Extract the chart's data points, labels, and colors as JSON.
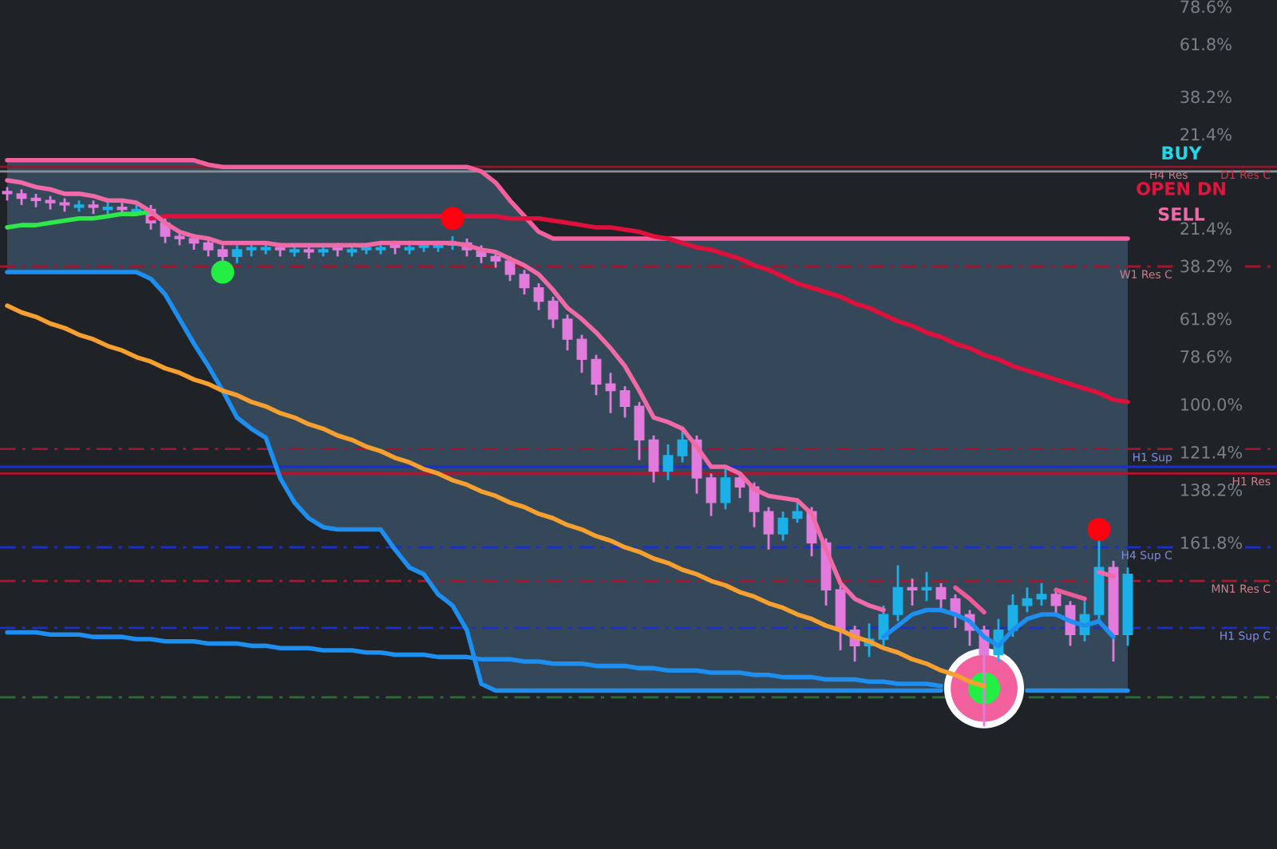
{
  "chart_data": {
    "type": "candlestick",
    "categories": [
      null,
      null,
      null,
      null,
      null,
      null,
      null,
      null,
      null,
      null,
      null,
      null,
      null,
      null,
      null,
      null,
      null,
      null,
      null,
      null,
      null,
      null,
      null,
      null,
      null,
      null,
      null,
      null,
      null,
      null,
      null,
      null,
      null,
      null,
      null,
      null,
      null,
      null,
      null,
      null,
      null,
      null,
      null,
      null,
      null,
      null,
      null,
      null,
      null,
      null,
      null,
      null,
      null,
      null,
      null,
      null,
      null,
      null,
      null,
      null,
      null,
      null,
      null,
      null,
      null,
      null,
      null,
      null,
      null,
      null,
      null,
      null,
      null,
      null,
      null,
      null,
      null,
      null,
      null
    ],
    "ohlc": [
      [
        5,
        9,
        3,
        6
      ],
      [
        6,
        11,
        4,
        8
      ],
      [
        8,
        12,
        6,
        9
      ],
      [
        9,
        13,
        7,
        10
      ],
      [
        10,
        14,
        8,
        11
      ],
      [
        12,
        14,
        9,
        11
      ],
      [
        11,
        15,
        9,
        12
      ],
      [
        13,
        15,
        10,
        12
      ],
      [
        12,
        16,
        10,
        13
      ],
      [
        14,
        16,
        11,
        13
      ],
      [
        13,
        22,
        11,
        19
      ],
      [
        19,
        28,
        17,
        25
      ],
      [
        25,
        29,
        23,
        26
      ],
      [
        26,
        31,
        24,
        28
      ],
      [
        28,
        34,
        26,
        31
      ],
      [
        31,
        37,
        29,
        34
      ],
      [
        34,
        37,
        29,
        31
      ],
      [
        31,
        34,
        28,
        30
      ],
      [
        31,
        33,
        28,
        30
      ],
      [
        30,
        34,
        28,
        31
      ],
      [
        32,
        34,
        29,
        31
      ],
      [
        31,
        35,
        29,
        32
      ],
      [
        32,
        34,
        29,
        31
      ],
      [
        30,
        34,
        28,
        31
      ],
      [
        32,
        34,
        29,
        31
      ],
      [
        31,
        33,
        28,
        30
      ],
      [
        31,
        33,
        28,
        30
      ],
      [
        29,
        33,
        27,
        30
      ],
      [
        31,
        33,
        27,
        30
      ],
      [
        30,
        32,
        27,
        29
      ],
      [
        30,
        32,
        27,
        29
      ],
      [
        29,
        31,
        25,
        28
      ],
      [
        28,
        34,
        26,
        31
      ],
      [
        31,
        37,
        29,
        34
      ],
      [
        34,
        39,
        32,
        36
      ],
      [
        36,
        45,
        34,
        42
      ],
      [
        42,
        51,
        40,
        48
      ],
      [
        48,
        58,
        46,
        54
      ],
      [
        54,
        66,
        52,
        62
      ],
      [
        62,
        76,
        60,
        71
      ],
      [
        71,
        86,
        69,
        80
      ],
      [
        80,
        96,
        78,
        91
      ],
      [
        91,
        104,
        86,
        94
      ],
      [
        94,
        106,
        92,
        101
      ],
      [
        101,
        125,
        99,
        116
      ],
      [
        116,
        135,
        114,
        130
      ],
      [
        130,
        134,
        118,
        123
      ],
      [
        123,
        126,
        112,
        116
      ],
      [
        116,
        140,
        114,
        133
      ],
      [
        133,
        150,
        131,
        144
      ],
      [
        144,
        147,
        128,
        133
      ],
      [
        133,
        142,
        131,
        137
      ],
      [
        137,
        155,
        135,
        148
      ],
      [
        148,
        165,
        146,
        158
      ],
      [
        158,
        161,
        148,
        151
      ],
      [
        151,
        153,
        144,
        148
      ],
      [
        148,
        168,
        146,
        162
      ],
      [
        162,
        190,
        160,
        183
      ],
      [
        183,
        210,
        181,
        201
      ],
      [
        201,
        215,
        199,
        208
      ],
      [
        208,
        213,
        198,
        205
      ],
      [
        205,
        208,
        190,
        194
      ],
      [
        194,
        197,
        172,
        182
      ],
      [
        182,
        190,
        178,
        183
      ],
      [
        183,
        188,
        175,
        182
      ],
      [
        182,
        192,
        180,
        187
      ],
      [
        187,
        200,
        185,
        194
      ],
      [
        194,
        208,
        192,
        201
      ],
      [
        201,
        244,
        199,
        212
      ],
      [
        212,
        215,
        196,
        201
      ],
      [
        201,
        204,
        185,
        190
      ],
      [
        190,
        193,
        182,
        187
      ],
      [
        187,
        190,
        180,
        185
      ],
      [
        185,
        195,
        183,
        190
      ],
      [
        190,
        208,
        188,
        203
      ],
      [
        203,
        206,
        188,
        194
      ],
      [
        194,
        197,
        160,
        173
      ],
      [
        173,
        215,
        170,
        203
      ],
      [
        203,
        208,
        173,
        176
      ]
    ],
    "colors": [
      "#e27bdc",
      "#e27bdc",
      "#e27bdc",
      "#e27bdc",
      "#e27bdc",
      "#1cb0e8",
      "#e27bdc",
      "#1cb0e8",
      "#e27bdc",
      "#1cb0e8",
      "#e27bdc",
      "#e27bdc",
      "#e27bdc",
      "#e27bdc",
      "#e27bdc",
      "#e27bdc",
      "#1cb0e8",
      "#1cb0e8",
      "#1cb0e8",
      "#e27bdc",
      "#1cb0e8",
      "#e27bdc",
      "#1cb0e8",
      "#e27bdc",
      "#1cb0e8",
      "#1cb0e8",
      "#1cb0e8",
      "#e27bdc",
      "#1cb0e8",
      "#1cb0e8",
      "#1cb0e8",
      "#1cb0e8",
      "#e27bdc",
      "#e27bdc",
      "#e27bdc",
      "#e27bdc",
      "#e27bdc",
      "#e27bdc",
      "#e27bdc",
      "#e27bdc",
      "#e27bdc",
      "#e27bdc",
      "#e27bdc",
      "#e27bdc",
      "#e27bdc",
      "#e27bdc",
      "#1cb0e8",
      "#1cb0e8",
      "#e27bdc",
      "#e27bdc",
      "#1cb0e8",
      "#e27bdc",
      "#e27bdc",
      "#e27bdc",
      "#1cb0e8",
      "#1cb0e8",
      "#e27bdc",
      "#e27bdc",
      "#e27bdc",
      "#e27bdc",
      "#1cb0e8",
      "#1cb0e8",
      "#1cb0e8",
      "#e27bdc",
      "#1cb0e8",
      "#e27bdc",
      "#e27bdc",
      "#e27bdc",
      "#e27bdc",
      "#1cb0e8",
      "#1cb0e8",
      "#1cb0e8",
      "#1cb0e8",
      "#e27bdc",
      "#e27bdc",
      "#1cb0e8",
      "#1cb0e8",
      "#e27bdc",
      "#1cb0e8"
    ],
    "series": [
      {
        "type": "line",
        "color": "#f2609e",
        "values": [
          -9,
          -9,
          -9,
          -9,
          -9,
          -9,
          -9,
          -9,
          -9,
          -9,
          -9,
          -9,
          -9,
          -9,
          -7,
          -6,
          -6,
          -6,
          -6,
          -6,
          -6,
          -6,
          -6,
          -6,
          -6,
          -6,
          -6,
          -6,
          -6,
          -6,
          -6,
          -6,
          -6,
          -4,
          1,
          9,
          16,
          23,
          26,
          26,
          26,
          26,
          26,
          26,
          26,
          26,
          26,
          26,
          26,
          26,
          26,
          26,
          26,
          26,
          26,
          26,
          26,
          26,
          26,
          26,
          26,
          26,
          26,
          26,
          26,
          26,
          26,
          26,
          26,
          26,
          26,
          26,
          26,
          26,
          26,
          26,
          26,
          26,
          26
        ]
      },
      {
        "type": "line",
        "color": "#1c8ff0",
        "values": [
          41,
          41,
          41,
          41,
          41,
          41,
          41,
          41,
          41,
          41,
          44,
          51,
          62,
          73,
          83,
          94,
          106,
          111,
          115,
          133,
          144,
          151,
          155,
          156,
          156,
          156,
          156,
          165,
          173,
          176,
          185,
          190,
          201,
          225,
          228,
          228,
          228,
          228,
          228,
          228,
          228,
          228,
          228,
          228,
          228,
          228,
          228,
          228,
          228,
          228,
          228,
          228,
          228,
          228,
          228,
          228,
          228,
          228,
          228,
          228,
          228,
          228,
          228,
          228,
          228,
          228,
          null,
          null,
          null,
          null,
          null,
          228,
          228,
          228,
          228,
          228,
          228,
          228,
          228
        ]
      },
      {
        "type": "line",
        "color": "#1c8ff0",
        "values": [
          202,
          202,
          202,
          203,
          203,
          203,
          204,
          204,
          204,
          205,
          205,
          206,
          206,
          206,
          207,
          207,
          207,
          208,
          208,
          209,
          209,
          209,
          210,
          210,
          210,
          211,
          211,
          212,
          212,
          212,
          213,
          213,
          213,
          214,
          214,
          214,
          215,
          215,
          216,
          216,
          216,
          217,
          217,
          217,
          218,
          218,
          219,
          219,
          219,
          220,
          220,
          220,
          221,
          221,
          222,
          222,
          222,
          223,
          223,
          223,
          224,
          224,
          225,
          225,
          225,
          226,
          null,
          null,
          null,
          null,
          null,
          null,
          null,
          null,
          null,
          null,
          null,
          null,
          null
        ]
      },
      {
        "type": "line",
        "color": "#f7a030",
        "values": [
          56,
          59,
          61,
          64,
          66,
          69,
          71,
          74,
          76,
          79,
          81,
          84,
          86,
          89,
          91,
          94,
          96,
          99,
          101,
          104,
          106,
          109,
          111,
          114,
          116,
          119,
          121,
          124,
          126,
          129,
          131,
          134,
          136,
          139,
          141,
          144,
          146,
          149,
          151,
          154,
          156,
          159,
          161,
          164,
          166,
          169,
          171,
          174,
          176,
          179,
          181,
          184,
          186,
          189,
          191,
          194,
          196,
          199,
          201,
          204,
          206,
          209,
          211,
          214,
          216,
          219,
          221,
          224,
          226,
          null,
          null,
          null,
          null,
          null,
          null,
          null,
          null,
          null,
          null
        ]
      },
      {
        "type": "line",
        "color": "#2ee84a",
        "values": [
          21,
          20,
          20,
          19,
          18,
          17,
          17,
          16,
          15,
          15,
          14,
          null,
          null,
          null,
          null,
          null,
          null,
          null,
          null,
          null,
          null,
          null,
          null,
          null,
          null,
          null,
          null,
          null,
          null,
          null,
          null,
          null,
          null,
          null,
          null,
          null,
          null,
          null,
          null,
          null,
          null,
          null,
          null,
          null,
          null,
          null,
          null,
          null,
          null,
          null,
          null,
          null,
          null,
          null,
          null,
          null,
          null,
          null,
          null,
          null,
          null,
          null,
          null,
          null,
          null,
          null,
          null,
          null,
          null,
          null,
          null,
          null,
          null,
          null,
          null,
          null,
          null,
          null,
          null
        ]
      },
      {
        "type": "line",
        "color": "#e0103c",
        "values": [
          null,
          null,
          null,
          null,
          null,
          null,
          null,
          null,
          null,
          null,
          17,
          16,
          16,
          16,
          16,
          16,
          16,
          16,
          16,
          16,
          16,
          16,
          16,
          16,
          16,
          16,
          16,
          16,
          16,
          16,
          16,
          16,
          16,
          16,
          16,
          17,
          17,
          17,
          18,
          19,
          20,
          21,
          21,
          22,
          23,
          25,
          26,
          28,
          30,
          31,
          33,
          35,
          38,
          40,
          43,
          46,
          48,
          50,
          52,
          55,
          57,
          60,
          63,
          65,
          68,
          70,
          73,
          75,
          78,
          80,
          83,
          85,
          87,
          89,
          91,
          93,
          95,
          98,
          99
        ]
      },
      {
        "type": "line",
        "color": "#f06aa8",
        "values": [
          0,
          1,
          3,
          4,
          6,
          6,
          7,
          9,
          9,
          10,
          14,
          19,
          23,
          25,
          26,
          28,
          28,
          28,
          28,
          29,
          29,
          29,
          29,
          29,
          29,
          29,
          28,
          28,
          28,
          28,
          28,
          28,
          29,
          31,
          32,
          35,
          38,
          42,
          49,
          57,
          62,
          68,
          75,
          83,
          94,
          106,
          108,
          111,
          119,
          128,
          128,
          131,
          138,
          141,
          142,
          143,
          149,
          165,
          180,
          187,
          190,
          192,
          null,
          null,
          null,
          null,
          null,
          null,
          null,
          null,
          null,
          null,
          null,
          null,
          null,
          null,
          null,
          null,
          null
        ],
        "upper": [
          -9,
          -9,
          -9,
          -9,
          -9,
          -9,
          -9,
          -9,
          -9,
          -9,
          -9,
          -9,
          -9,
          -9,
          -7,
          -6,
          -6,
          -6,
          -6,
          -6,
          -6,
          -6,
          -6,
          -6,
          -6,
          -6,
          -6,
          -6,
          -6,
          -6,
          -6,
          -6,
          -6,
          -4,
          1,
          9,
          16,
          23,
          26,
          26,
          26,
          26,
          26,
          26,
          26,
          26,
          26,
          26,
          26,
          26,
          26,
          26,
          26,
          26,
          26,
          26,
          26,
          26,
          26,
          26,
          26,
          26,
          26,
          26,
          26,
          26,
          26,
          26,
          26,
          26,
          26,
          26,
          26,
          26,
          26,
          26,
          26,
          26,
          26
        ],
        "lower": [
          41,
          41,
          41,
          41,
          41,
          41,
          41,
          41,
          41,
          41,
          44,
          51,
          62,
          73,
          83,
          94,
          106,
          111,
          115,
          133,
          144,
          151,
          155,
          156,
          156,
          156,
          156,
          165,
          173,
          176,
          185,
          190,
          201,
          225,
          228,
          228,
          228,
          228,
          228,
          228,
          228,
          228,
          228,
          228,
          228,
          228,
          228,
          228,
          228,
          228,
          228,
          228,
          228,
          228,
          228,
          228,
          228,
          228,
          228,
          228,
          228,
          228,
          228,
          228,
          228,
          228,
          228,
          228,
          228,
          228,
          228,
          228,
          228,
          228,
          228,
          228,
          228,
          228,
          228
        ]
      },
      {
        "type": "line",
        "color": "#1c8ff0",
        "values": [
          null,
          null,
          null,
          null,
          null,
          null,
          null,
          null,
          null,
          null,
          null,
          null,
          null,
          null,
          null,
          null,
          null,
          null,
          null,
          null,
          null,
          null,
          null,
          null,
          null,
          null,
          null,
          null,
          null,
          null,
          null,
          null,
          null,
          null,
          null,
          null,
          null,
          null,
          null,
          null,
          null,
          null,
          null,
          null,
          null,
          null,
          null,
          null,
          null,
          null,
          null,
          null,
          null,
          null,
          null,
          null,
          null,
          null,
          null,
          null,
          null,
          204,
          199,
          194,
          192,
          192,
          194,
          197,
          204,
          208,
          201,
          196,
          194,
          194,
          197,
          199,
          197,
          204,
          null
        ]
      },
      {
        "type": "line",
        "color": "#ee5a98",
        "values": [
          null,
          null,
          null,
          null,
          null,
          null,
          null,
          null,
          null,
          null,
          null,
          null,
          null,
          null,
          null,
          null,
          null,
          null,
          null,
          null,
          null,
          null,
          null,
          null,
          null,
          null,
          null,
          null,
          null,
          null,
          null,
          null,
          null,
          null,
          null,
          null,
          null,
          null,
          null,
          null,
          null,
          null,
          null,
          null,
          null,
          null,
          null,
          null,
          null,
          null,
          null,
          null,
          null,
          null,
          null,
          null,
          null,
          null,
          null,
          null,
          null,
          null,
          null,
          null,
          null,
          null,
          182,
          187,
          193,
          null,
          null,
          null,
          null,
          null,
          null,
          null,
          null,
          null,
          null
        ]
      },
      {
        "type": "line",
        "color": "#ea5c96",
        "values": [
          null,
          null,
          null,
          null,
          null,
          null,
          null,
          null,
          null,
          null,
          null,
          null,
          null,
          null,
          null,
          null,
          null,
          null,
          null,
          null,
          null,
          null,
          null,
          null,
          null,
          null,
          null,
          null,
          null,
          null,
          null,
          null,
          null,
          null,
          null,
          null,
          null,
          null,
          null,
          null,
          null,
          null,
          null,
          null,
          null,
          null,
          null,
          null,
          null,
          null,
          null,
          null,
          null,
          null,
          null,
          null,
          null,
          null,
          null,
          null,
          null,
          null,
          null,
          null,
          null,
          null,
          null,
          null,
          null,
          null,
          null,
          null,
          null,
          183,
          185,
          187,
          null,
          null,
          null
        ]
      },
      {
        "type": "line",
        "color": "#f06aa8",
        "values": [
          null,
          null,
          null,
          null,
          null,
          null,
          null,
          null,
          null,
          null,
          null,
          null,
          null,
          null,
          null,
          null,
          null,
          null,
          null,
          null,
          null,
          null,
          null,
          null,
          null,
          null,
          null,
          null,
          null,
          null,
          null,
          null,
          null,
          null,
          null,
          null,
          null,
          null,
          null,
          null,
          null,
          null,
          null,
          null,
          null,
          null,
          null,
          null,
          null,
          null,
          null,
          null,
          null,
          null,
          null,
          null,
          null,
          null,
          null,
          null,
          null,
          null,
          null,
          null,
          null,
          null,
          null,
          null,
          null,
          null,
          null,
          null,
          null,
          null,
          null,
          null,
          175,
          177,
          null
        ]
      },
      {
        "type": "scatter",
        "color": "#22ee44",
        "marker": "circle",
        "values": [
          null,
          null,
          null,
          null,
          null,
          null,
          null,
          null,
          null,
          null,
          null,
          null,
          null,
          null,
          null,
          41,
          null,
          null,
          null,
          null,
          null,
          null,
          null,
          null,
          null,
          null,
          null,
          null,
          null,
          null,
          null,
          null,
          null,
          null,
          null,
          null,
          null,
          null,
          null,
          null,
          null,
          null,
          null,
          null,
          null,
          null,
          null,
          null,
          null,
          null,
          null,
          null,
          null,
          null,
          null,
          null,
          null,
          null,
          null,
          null,
          null,
          null,
          null,
          null,
          null,
          null,
          null,
          null,
          null,
          null,
          null,
          null,
          null,
          null,
          null,
          null,
          null,
          null,
          null
        ]
      },
      {
        "type": "scatter",
        "color": "#ff0010",
        "marker": "circle",
        "values": [
          null,
          null,
          null,
          null,
          null,
          null,
          null,
          null,
          null,
          null,
          null,
          null,
          null,
          null,
          null,
          null,
          null,
          null,
          null,
          null,
          null,
          null,
          null,
          null,
          null,
          null,
          null,
          null,
          null,
          null,
          null,
          17,
          null,
          null,
          null,
          null,
          null,
          null,
          null,
          null,
          null,
          null,
          null,
          null,
          null,
          null,
          null,
          null,
          null,
          null,
          null,
          null,
          null,
          null,
          null,
          null,
          null,
          null,
          null,
          null,
          null,
          null,
          null,
          null,
          null,
          null,
          null,
          null,
          null,
          null,
          null,
          null,
          null,
          null,
          null,
          null,
          156,
          null,
          null
        ]
      },
      {
        "type": "bubble",
        "color": "#ffffff",
        "marker": "circle",
        "values": [
          null,
          null,
          null,
          null,
          null,
          null,
          null,
          null,
          null,
          null,
          null,
          null,
          null,
          null,
          null,
          null,
          null,
          null,
          null,
          null,
          null,
          null,
          null,
          null,
          null,
          null,
          null,
          null,
          null,
          null,
          null,
          null,
          null,
          null,
          null,
          null,
          null,
          null,
          null,
          null,
          null,
          null,
          null,
          null,
          null,
          null,
          null,
          null,
          null,
          null,
          null,
          null,
          null,
          null,
          null,
          null,
          null,
          null,
          null,
          null,
          null,
          null,
          null,
          null,
          null,
          null,
          null,
          null,
          227,
          null,
          null,
          null,
          null,
          null,
          null,
          null,
          null,
          null,
          null
        ],
        "sizes": [
          null,
          null,
          null,
          null,
          null,
          null,
          null,
          null,
          null,
          null,
          null,
          null,
          null,
          null,
          null,
          null,
          null,
          null,
          null,
          null,
          null,
          null,
          null,
          null,
          null,
          null,
          null,
          null,
          null,
          null,
          null,
          null,
          null,
          null,
          null,
          null,
          null,
          null,
          null,
          null,
          null,
          null,
          null,
          null,
          null,
          null,
          null,
          null,
          null,
          null,
          null,
          null,
          null,
          null,
          null,
          null,
          null,
          null,
          null,
          null,
          null,
          null,
          null,
          null,
          null,
          null,
          null,
          null,
          1,
          null,
          null,
          null,
          null,
          null,
          null,
          null,
          null,
          null,
          null
        ]
      },
      {
        "type": "bubble",
        "color": "#f2609e",
        "marker": "circle",
        "values": [
          null,
          null,
          null,
          null,
          null,
          null,
          null,
          null,
          null,
          null,
          null,
          null,
          null,
          null,
          null,
          null,
          null,
          null,
          null,
          null,
          null,
          null,
          null,
          null,
          null,
          null,
          null,
          null,
          null,
          null,
          null,
          null,
          null,
          null,
          null,
          null,
          null,
          null,
          null,
          null,
          null,
          null,
          null,
          null,
          null,
          null,
          null,
          null,
          null,
          null,
          null,
          null,
          null,
          null,
          null,
          null,
          null,
          null,
          null,
          null,
          null,
          null,
          null,
          null,
          null,
          null,
          null,
          null,
          227,
          null,
          null,
          null,
          null,
          null,
          null,
          null,
          null,
          null,
          null
        ],
        "sizes": [
          null,
          null,
          null,
          null,
          null,
          null,
          null,
          null,
          null,
          null,
          null,
          null,
          null,
          null,
          null,
          null,
          null,
          null,
          null,
          null,
          null,
          null,
          null,
          null,
          null,
          null,
          null,
          null,
          null,
          null,
          null,
          null,
          null,
          null,
          null,
          null,
          null,
          null,
          null,
          null,
          null,
          null,
          null,
          null,
          null,
          null,
          null,
          null,
          null,
          null,
          null,
          null,
          null,
          null,
          null,
          null,
          null,
          null,
          null,
          null,
          null,
          null,
          null,
          null,
          null,
          null,
          null,
          null,
          0.7,
          null,
          null,
          null,
          null,
          null,
          null,
          null,
          null,
          null,
          null
        ]
      },
      {
        "type": "bubble",
        "color": "#22ee44",
        "marker": "circle",
        "values": [
          null,
          null,
          null,
          null,
          null,
          null,
          null,
          null,
          null,
          null,
          null,
          null,
          null,
          null,
          null,
          null,
          null,
          null,
          null,
          null,
          null,
          null,
          null,
          null,
          null,
          null,
          null,
          null,
          null,
          null,
          null,
          null,
          null,
          null,
          null,
          null,
          null,
          null,
          null,
          null,
          null,
          null,
          null,
          null,
          null,
          null,
          null,
          null,
          null,
          null,
          null,
          null,
          null,
          null,
          null,
          null,
          null,
          null,
          null,
          null,
          null,
          null,
          null,
          null,
          null,
          null,
          null,
          null,
          227,
          null,
          null,
          null,
          null,
          null,
          null,
          null,
          null,
          null,
          null
        ],
        "sizes": [
          null,
          null,
          null,
          null,
          null,
          null,
          null,
          null,
          null,
          null,
          null,
          null,
          null,
          null,
          null,
          null,
          null,
          null,
          null,
          null,
          null,
          null,
          null,
          null,
          null,
          null,
          null,
          null,
          null,
          null,
          null,
          null,
          null,
          null,
          null,
          null,
          null,
          null,
          null,
          null,
          null,
          null,
          null,
          null,
          null,
          null,
          null,
          null,
          null,
          null,
          null,
          null,
          null,
          null,
          null,
          null,
          null,
          null,
          null,
          null,
          null,
          null,
          null,
          null,
          null,
          null,
          null,
          null,
          0.16,
          null,
          null,
          null,
          null,
          null,
          null,
          null,
          null,
          null,
          null
        ]
      }
    ],
    "ylim": [
      298.8,
      -80.6
    ],
    "yticks": [
      {
        "value": 21.4,
        "label": "21.4%"
      },
      {
        "value": 38.2,
        "label": "38.2%"
      },
      {
        "value": 61.8,
        "label": "61.8%"
      },
      {
        "value": 78.6,
        "label": "78.6%"
      },
      {
        "value": 100,
        "label": "100.0%"
      },
      {
        "value": 121.4,
        "label": "121.4%"
      },
      {
        "value": 138.2,
        "label": "138.2%"
      },
      {
        "value": 161.8,
        "label": "161.8%"
      }
    ],
    "y2lim": [
      -299,
      81.5
    ],
    "y2ticks": [
      {
        "value": 78.6,
        "label": "78.6%"
      },
      {
        "value": 61.8,
        "label": "61.8%"
      },
      {
        "value": 38.2,
        "label": "38.2%"
      },
      {
        "value": 21.4,
        "label": "21.4%"
      }
    ],
    "ref_lines": [
      {
        "axis": "y",
        "value": -6,
        "label": "H4 Res",
        "color": "#8b1a2b"
      },
      {
        "axis": "y",
        "value": -4,
        "color": "#8a8f96"
      },
      {
        "axis": "y",
        "value": 38.5,
        "label": "W1 Res C",
        "color": "#a3142e",
        "line_style": "dashed"
      },
      {
        "axis": "y",
        "value": 120,
        "color": "#a3142e",
        "line_style": "dashed"
      },
      {
        "axis": "y",
        "value": 128,
        "label": "H1 Sup",
        "color": "#1a2fd0"
      },
      {
        "axis": "y",
        "value": 131,
        "label": "H1 Res",
        "color": "#b0142e"
      },
      {
        "axis": "y",
        "value": 164,
        "label": "H4 Sup C",
        "color": "#1a2fd0",
        "line_style": "dashed"
      },
      {
        "axis": "y",
        "value": 179,
        "label": "MN1 Res C",
        "color": "#b0142e",
        "line_style": "dashed"
      },
      {
        "axis": "y",
        "value": 200,
        "label": "H1 Sup C",
        "color": "#1a2fd0",
        "line_style": "dashed"
      },
      {
        "axis": "y",
        "value": 231,
        "color": "#2e6b3a",
        "line_style": "dashed"
      }
    ],
    "annotations": [
      "BUY",
      "OPEN DN",
      "SELL",
      {
        "text": "D1 Res C",
        "y": -6
      }
    ],
    "grid": false
  }
}
